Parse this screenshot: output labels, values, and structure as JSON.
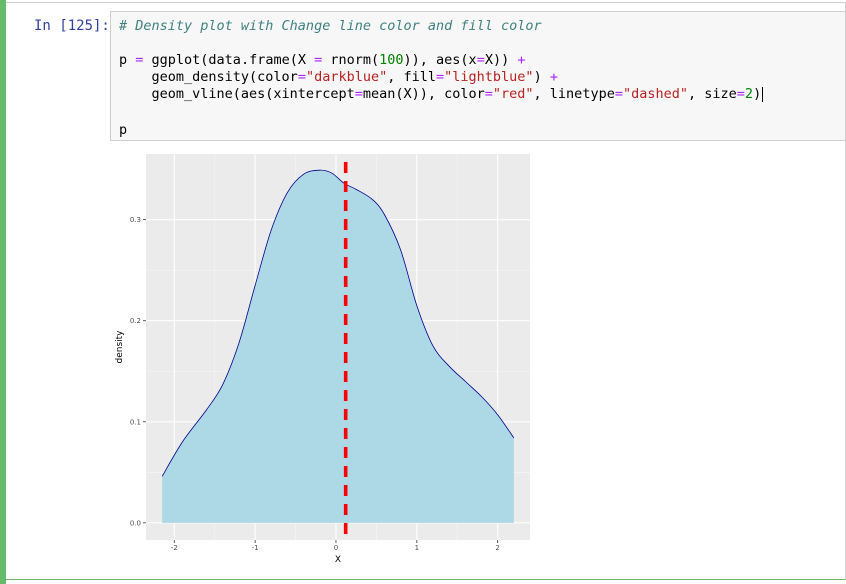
{
  "cell": {
    "prompt": "In [125]:",
    "code": {
      "line1_comment": "# Density plot with Change line color and fill color",
      "line2_a": "p ",
      "line2_eq": "=",
      "line2_b": " ggplot(data.frame(X ",
      "line2_eq2": "=",
      "line2_c": " rnorm(",
      "line2_num": "100",
      "line2_d": ")), aes(x",
      "line2_eq3": "=",
      "line2_e": "X)) ",
      "line2_plus": "+",
      "line3_a": "    geom_density(color",
      "line3_eq": "=",
      "line3_s1": "\"darkblue\"",
      "line3_b": ", fill",
      "line3_eq2": "=",
      "line3_s2": "\"lightblue\"",
      "line3_c": ") ",
      "line3_plus": "+",
      "line4_a": "    geom_vline(aes(xintercept",
      "line4_eq": "=",
      "line4_b": "mean(X)), color",
      "line4_eq2": "=",
      "line4_s1": "\"red\"",
      "line4_c": ", linetype",
      "line4_eq3": "=",
      "line4_s2": "\"dashed\"",
      "line4_d": ", size",
      "line4_eq4": "=",
      "line4_num": "2",
      "line4_e": ")",
      "line6": "p"
    }
  },
  "chart_data": {
    "type": "area",
    "xlabel": "X",
    "ylabel": "density",
    "x_ticks": [
      -2,
      -1,
      0,
      1,
      2
    ],
    "x_tick_labels": [
      "-2",
      "-1",
      "0",
      "1",
      "2"
    ],
    "y_ticks": [
      0.0,
      0.1,
      0.2,
      0.3
    ],
    "y_tick_labels": [
      "0.0",
      "0.1",
      "0.2",
      "0.3"
    ],
    "xlim": [
      -2.35,
      2.4
    ],
    "ylim": [
      -0.017,
      0.365
    ],
    "line_color": "#00008b",
    "fill_color": "#add8e6",
    "vline": {
      "x": 0.12,
      "color": "#ff0000",
      "linetype": "dashed"
    },
    "series": [
      {
        "x": [
          -2.15,
          -1.9,
          -1.6,
          -1.4,
          -1.2,
          -1.0,
          -0.8,
          -0.6,
          -0.4,
          -0.2,
          -0.05,
          0.1,
          0.25,
          0.45,
          0.6,
          0.8,
          1.0,
          1.2,
          1.4,
          1.6,
          1.8,
          2.0,
          2.2
        ],
        "y": [
          0.046,
          0.08,
          0.112,
          0.137,
          0.178,
          0.235,
          0.29,
          0.327,
          0.345,
          0.349,
          0.346,
          0.336,
          0.33,
          0.32,
          0.305,
          0.27,
          0.215,
          0.175,
          0.155,
          0.14,
          0.125,
          0.107,
          0.084
        ]
      }
    ],
    "grid": true,
    "panel_background": "#ebebeb"
  }
}
